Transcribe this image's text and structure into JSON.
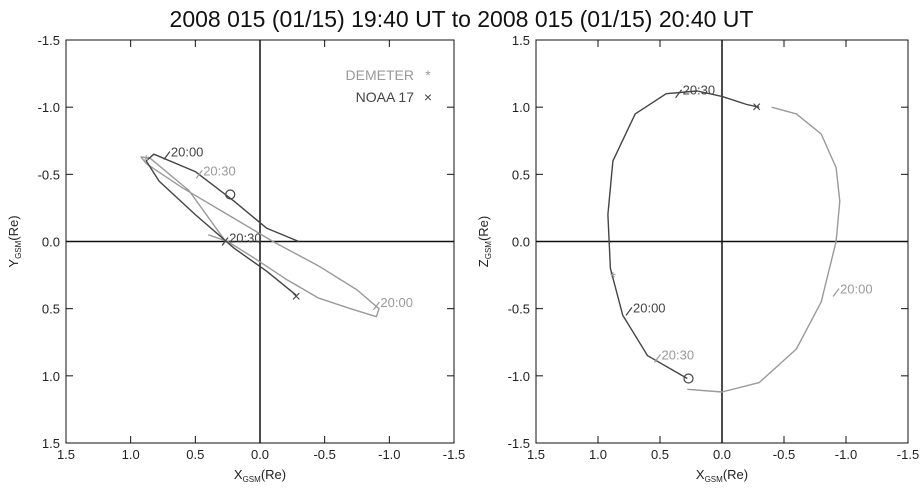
{
  "title": "2008 015 (01/15) 19:40 UT to 2008 015 (01/15) 20:40 UT",
  "colors": {
    "demeter": "#9a9a9a",
    "noaa": "#444444",
    "axes": "#111111"
  },
  "chart_data": [
    {
      "type": "line",
      "xlabel_main": "X",
      "xlabel_sub": "GSM",
      "xlabel_tail": "(Re)",
      "ylabel_main": "Y",
      "ylabel_sub": "GSM",
      "ylabel_tail": "(Re)",
      "xlim": [
        1.5,
        -1.5
      ],
      "ylim": [
        -1.5,
        1.5
      ],
      "xticks": [
        "1.5",
        "1.0",
        "0.5",
        "0.0",
        "-0.5",
        "-1.0",
        "-1.5"
      ],
      "yticks": [
        "-1.5",
        "-1.0",
        "-0.5",
        "0.0",
        "0.5",
        "1.0",
        "1.5"
      ],
      "legend": [
        {
          "name": "DEMETER",
          "symbol": "*"
        },
        {
          "name": "NOAA 17",
          "symbol": "×"
        }
      ],
      "series": [
        {
          "name": "DEMETER",
          "x": [
            0.28,
            0.55,
            0.85,
            0.92,
            0.88,
            0.6,
            0.25,
            -0.1,
            -0.45,
            -0.75,
            -0.92,
            -0.9,
            -0.7,
            -0.45,
            -0.2,
            0.05,
            0.25,
            0.4
          ],
          "y": [
            -0.02,
            -0.38,
            -0.62,
            -0.63,
            -0.58,
            -0.4,
            -0.2,
            0.0,
            0.18,
            0.36,
            0.5,
            0.56,
            0.5,
            0.42,
            0.28,
            0.12,
            0.0,
            -0.05
          ]
        },
        {
          "name": "NOAA 17",
          "x": [
            -0.28,
            -0.05,
            0.2,
            0.5,
            0.78,
            0.88,
            0.82,
            0.5,
            0.2,
            -0.05,
            -0.3
          ],
          "y": [
            0.4,
            0.22,
            0.05,
            -0.2,
            -0.45,
            -0.6,
            -0.65,
            -0.52,
            -0.3,
            -0.1,
            0.0
          ]
        }
      ],
      "markers": [
        {
          "series": "DEMETER",
          "symbol": "*",
          "x": 0.88,
          "y": -0.6
        },
        {
          "series": "DEMETER",
          "symbol": "o",
          "x": 0.23,
          "y": -0.35
        },
        {
          "series": "NOAA 17",
          "symbol": "×",
          "x": -0.28,
          "y": 0.41
        }
      ],
      "annotations": [
        {
          "text": "20:00",
          "series": "NOAA 17",
          "x": 0.72,
          "y": -0.64
        },
        {
          "text": "20:30",
          "series": "DEMETER",
          "x": 0.47,
          "y": -0.5
        },
        {
          "text": "20:30",
          "series": "NOAA 17",
          "x": 0.27,
          "y": 0.0
        },
        {
          "text": "20:00",
          "series": "DEMETER",
          "x": -0.9,
          "y": 0.48
        }
      ]
    },
    {
      "type": "line",
      "xlabel_main": "X",
      "xlabel_sub": "GSM",
      "xlabel_tail": "(Re)",
      "ylabel_main": "Z",
      "ylabel_sub": "GSM",
      "ylabel_tail": "(Re)",
      "xlim": [
        1.5,
        -1.5
      ],
      "ylim": [
        -1.5,
        1.5
      ],
      "xticks": [
        "1.5",
        "1.0",
        "0.5",
        "0.0",
        "-0.5",
        "-1.0",
        "-1.5"
      ],
      "yticks": [
        "1.5",
        "1.0",
        "0.5",
        "0.0",
        "-0.5",
        "-1.0",
        "-1.5"
      ],
      "series": [
        {
          "name": "DEMETER",
          "x": [
            0.28,
            0.0,
            -0.3,
            -0.6,
            -0.8,
            -0.92,
            -0.95,
            -0.92,
            -0.8,
            -0.6,
            -0.4
          ],
          "y": [
            1.1,
            1.12,
            1.05,
            0.8,
            0.45,
            0.0,
            -0.3,
            -0.55,
            -0.8,
            -0.95,
            -1.0
          ]
        },
        {
          "name": "NOAA 17",
          "x": [
            0.28,
            0.6,
            0.8,
            0.9,
            0.92,
            0.88,
            0.7,
            0.45,
            0.2,
            0.0,
            -0.2,
            -0.3
          ],
          "y": [
            1.02,
            0.85,
            0.55,
            0.2,
            -0.2,
            -0.6,
            -0.95,
            -1.1,
            -1.12,
            -1.08,
            -1.02,
            -1.0
          ]
        }
      ],
      "markers": [
        {
          "series": "DEMETER",
          "symbol": "*",
          "x": 0.88,
          "y": 0.27
        },
        {
          "series": "DEMETER",
          "symbol": "o",
          "x": 0.27,
          "y": 1.02
        },
        {
          "series": "NOAA 17",
          "symbol": "×",
          "x": -0.28,
          "y": -1.0
        }
      ],
      "annotations": [
        {
          "text": "20:30",
          "series": "DEMETER",
          "x": 0.52,
          "y": 0.87
        },
        {
          "text": "20:00",
          "series": "NOAA 17",
          "x": 0.75,
          "y": 0.52
        },
        {
          "text": "20:00",
          "series": "DEMETER",
          "x": -0.92,
          "y": 0.38
        },
        {
          "text": "20:30",
          "series": "NOAA 17",
          "x": 0.35,
          "y": -1.1
        }
      ]
    }
  ]
}
